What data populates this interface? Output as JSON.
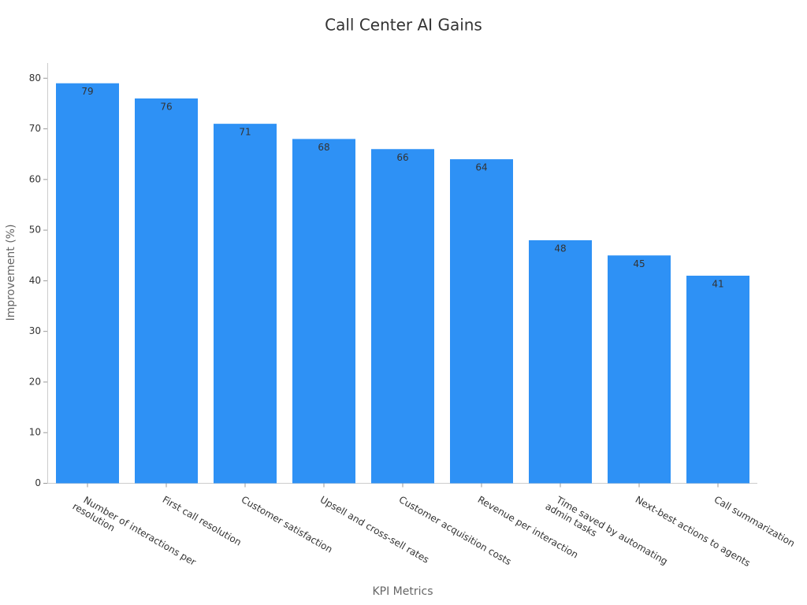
{
  "chart_data": {
    "type": "bar",
    "title": "Call Center AI Gains",
    "x_label": "KPI Metrics",
    "y_label": "Improvement (%)",
    "categories": [
      "Number of interactions per\nresolution",
      "First call resolution",
      "Customer satisfaction",
      "Upsell and cross-sell rates",
      "Customer acquisition costs",
      "Revenue per interaction",
      "Time saved by automating\nadmin tasks",
      "Next-best actions to agents",
      "Call summarization"
    ],
    "values": [
      79,
      76,
      71,
      68,
      66,
      64,
      48,
      45,
      41
    ],
    "color": "#2e91f5",
    "ylim": [
      0,
      83
    ],
    "yticks": [
      0,
      10,
      20,
      30,
      40,
      50,
      60,
      70,
      80
    ],
    "grid": false
  }
}
